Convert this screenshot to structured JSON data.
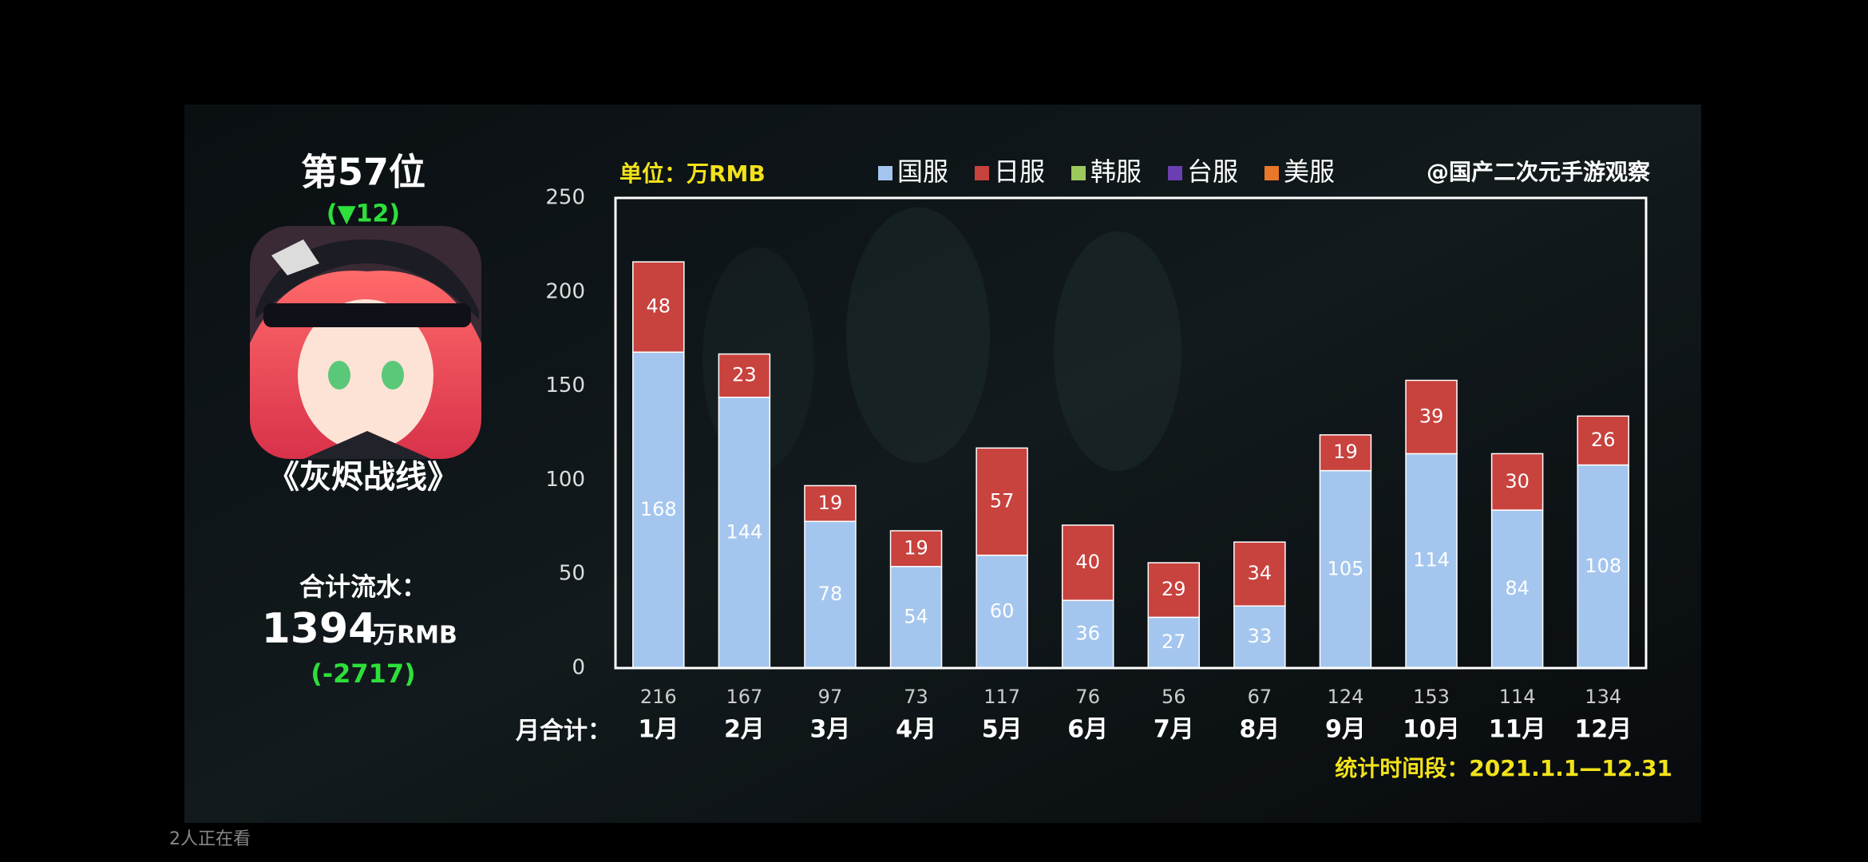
{
  "sidebar": {
    "rank": "第57位",
    "rank_change": "(▼12)",
    "game": "《灰烬战线》",
    "total_label": "合计流水：",
    "total_value": 1394,
    "total_unit": "万RMB",
    "total_change": "(-2717)"
  },
  "viewers": "2人正在看",
  "chart_data": {
    "type": "bar",
    "stacked": true,
    "unit_label": "单位：万RMB",
    "source": "@国产二次元手游观察",
    "period": "统计时间段：2021.1.1—12.31",
    "totals_label": "月合计：",
    "categories": [
      "1月",
      "2月",
      "3月",
      "4月",
      "5月",
      "6月",
      "7月",
      "8月",
      "9月",
      "10月",
      "11月",
      "12月"
    ],
    "totals": [
      216,
      167,
      97,
      73,
      117,
      76,
      56,
      67,
      124,
      153,
      114,
      134
    ],
    "series": [
      {
        "name": "国服",
        "color": "#a4c6ee",
        "values": [
          168,
          144,
          78,
          54,
          60,
          36,
          27,
          33,
          105,
          114,
          84,
          108
        ]
      },
      {
        "name": "日服",
        "color": "#c8423e",
        "values": [
          48,
          23,
          19,
          19,
          57,
          40,
          29,
          34,
          19,
          39,
          30,
          26
        ]
      },
      {
        "name": "韩服",
        "color": "#9cc95c",
        "values": [
          0,
          0,
          0,
          0,
          0,
          0,
          0,
          0,
          0,
          0,
          0,
          0
        ]
      },
      {
        "name": "台服",
        "color": "#6b3fb2",
        "values": [
          0,
          0,
          0,
          0,
          0,
          0,
          0,
          0,
          0,
          0,
          0,
          0
        ]
      },
      {
        "name": "美服",
        "color": "#e8772a",
        "values": [
          0,
          0,
          0,
          0,
          0,
          0,
          0,
          0,
          0,
          0,
          0,
          0
        ]
      }
    ],
    "ylim": [
      0,
      250
    ],
    "yticks": [
      0,
      50,
      100,
      150,
      200,
      250
    ],
    "grid": false
  }
}
